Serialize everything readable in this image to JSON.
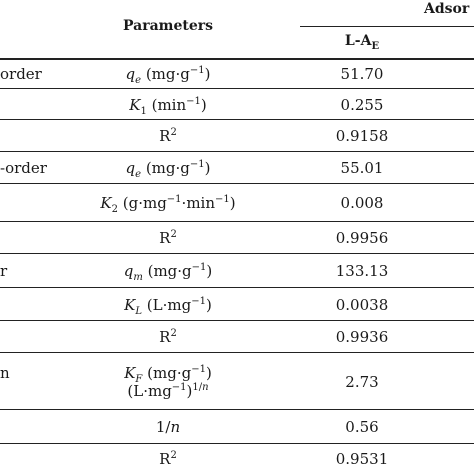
{
  "header": {
    "parameters": "Parameters",
    "adsorbent_group": "Adsor",
    "column_la": {
      "base": "L-A",
      "sub": "E"
    }
  },
  "rows": [
    {
      "model": "order",
      "param_html": "<i>q<sub>e</sub></i> (mg·g<sup>−1</sup>)",
      "value": "51.70"
    },
    {
      "model": "",
      "param_html": "<i>K</i><sub>1</sub> (min<sup>−1</sup>)",
      "value": "0.255"
    },
    {
      "model": "",
      "param_html": "R<sup>2</sup>",
      "value": "0.9158"
    },
    {
      "model": "-order",
      "param_html": "<i>q<sub>e</sub></i> (mg·g<sup>−1</sup>)",
      "value": "55.01"
    },
    {
      "model": "",
      "param_html": "<i>K</i><sub>2</sub> (g·mg<sup>−1</sup>·min<sup>−1</sup>)",
      "value": "0.008"
    },
    {
      "model": "",
      "param_html": "R<sup>2</sup>",
      "value": "0.9956"
    },
    {
      "model": "r",
      "param_html": "<i>q<sub>m</sub></i> (mg·g<sup>−1</sup>)",
      "value": "133.13"
    },
    {
      "model": "",
      "param_html": "<i>K<sub>L</sub></i> (L·mg<sup>−1</sup>)",
      "value": "0.0038"
    },
    {
      "model": "",
      "param_html": "R<sup>2</sup>",
      "value": "0.9936"
    },
    {
      "model": "n",
      "param_html": "<i>K<sub>F</sub></i> (mg·g<sup>−1</sup>)<br>(L·mg<sup>−1</sup>)<sup>1/<i>n</i></sup>",
      "value": "2.73"
    },
    {
      "model": "",
      "param_html": "1/<i>n</i>",
      "value": "0.56"
    },
    {
      "model": "",
      "param_html": "R<sup>2</sup>",
      "value": "0.9531"
    }
  ]
}
